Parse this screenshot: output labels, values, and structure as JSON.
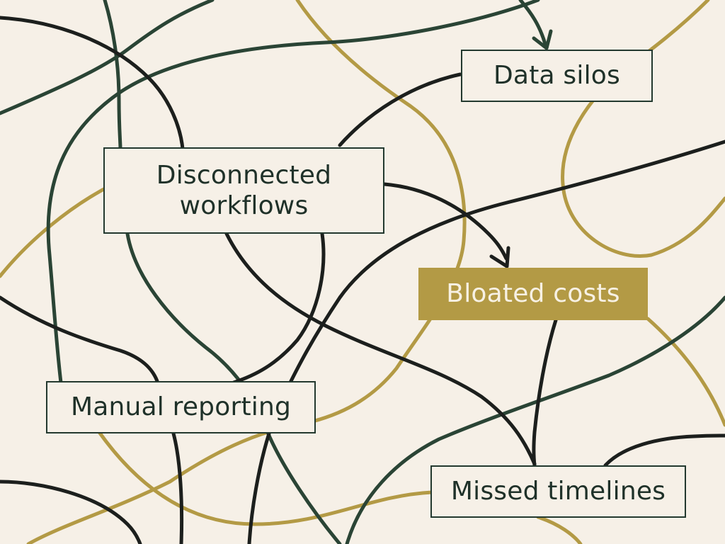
{
  "diagram": {
    "colors": {
      "background": "#f6f0e7",
      "dark_green": "#2a4435",
      "black": "#1c1f1d",
      "gold": "#b39a45",
      "highlight_fill": "#b39a45",
      "highlight_text": "#f7f1e4"
    },
    "nodes": {
      "data_silos": "Data silos",
      "disconnected_workflows": "Disconnected workflows",
      "bloated_costs": "Bloated costs",
      "manual_reporting": "Manual reporting",
      "missed_timelines": "Missed timelines"
    },
    "highlighted_node": "bloated_costs"
  }
}
